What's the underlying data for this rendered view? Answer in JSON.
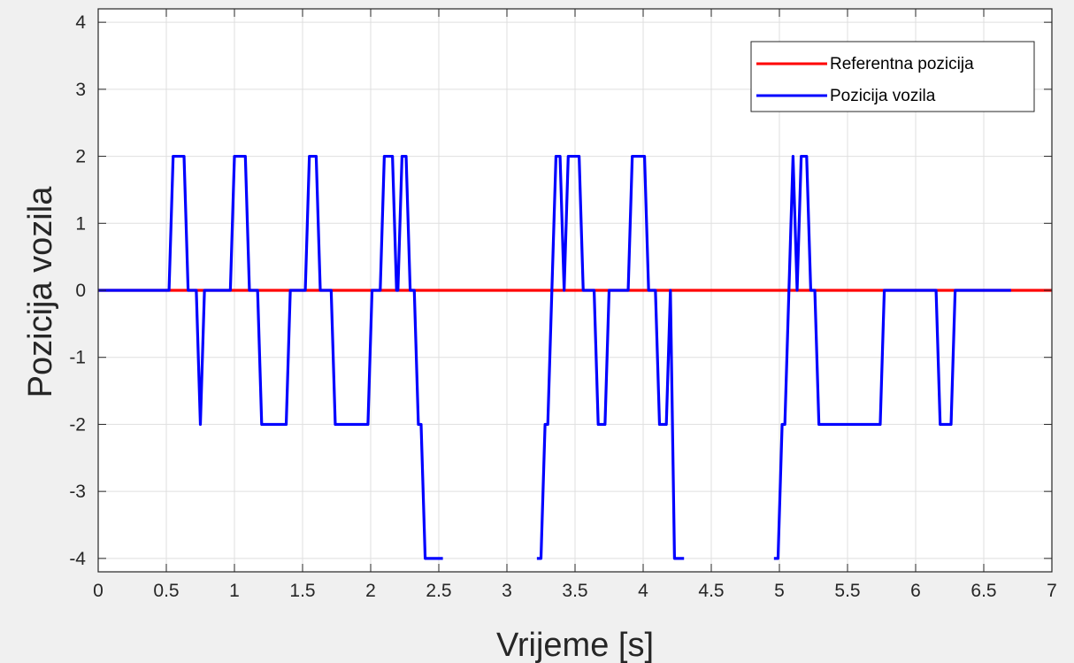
{
  "chart_data": {
    "type": "line",
    "title": "",
    "xlabel": "Vrijeme [s]",
    "ylabel": "Pozicija vozila",
    "xlim": [
      0,
      7
    ],
    "ylim": [
      -4.2,
      4.2
    ],
    "xticks": [
      0,
      0.5,
      1,
      1.5,
      2,
      2.5,
      3,
      3.5,
      4,
      4.5,
      5,
      5.5,
      6,
      6.5,
      7
    ],
    "xtick_labels": [
      "0",
      "0.5",
      "1",
      "1.5",
      "2",
      "2.5",
      "3",
      "3.5",
      "4",
      "4.5",
      "5",
      "5.5",
      "6",
      "6.5",
      "7"
    ],
    "yticks": [
      -4,
      -3,
      -2,
      -1,
      0,
      1,
      2,
      3,
      4
    ],
    "ytick_labels": [
      "-4",
      "-3",
      "-2",
      "-1",
      "0",
      "1",
      "2",
      "3",
      "4"
    ],
    "grid": true,
    "legend": "top-right",
    "series": [
      {
        "name": "Referentna pozicija",
        "color": "#ff0000",
        "segments": [
          [
            [
              0,
              0
            ],
            [
              7,
              0
            ]
          ]
        ]
      },
      {
        "name": "Pozicija vozila",
        "color": "#0000ff",
        "segments": [
          [
            [
              0,
              0
            ],
            [
              0.52,
              0
            ],
            [
              0.55,
              2
            ],
            [
              0.63,
              2
            ],
            [
              0.66,
              0
            ],
            [
              0.72,
              0
            ],
            [
              0.75,
              -2
            ],
            [
              0.78,
              0
            ],
            [
              0.97,
              0
            ],
            [
              1.0,
              2
            ],
            [
              1.08,
              2
            ],
            [
              1.11,
              0
            ],
            [
              1.17,
              0
            ],
            [
              1.2,
              -2
            ],
            [
              1.38,
              -2
            ],
            [
              1.41,
              0
            ],
            [
              1.52,
              0
            ],
            [
              1.55,
              2
            ],
            [
              1.6,
              2
            ],
            [
              1.63,
              0
            ],
            [
              1.71,
              0
            ],
            [
              1.74,
              -2
            ],
            [
              1.98,
              -2
            ],
            [
              2.01,
              0
            ],
            [
              2.07,
              0
            ],
            [
              2.1,
              2
            ],
            [
              2.16,
              2
            ],
            [
              2.19,
              0
            ],
            [
              2.2,
              0
            ],
            [
              2.23,
              2
            ],
            [
              2.26,
              2
            ],
            [
              2.29,
              0
            ],
            [
              2.32,
              0
            ],
            [
              2.35,
              -2
            ],
            [
              2.37,
              -2
            ],
            [
              2.4,
              -4
            ],
            [
              2.53,
              -4
            ]
          ],
          [
            [
              3.22,
              -4
            ],
            [
              3.25,
              -4
            ],
            [
              3.28,
              -2
            ],
            [
              3.3,
              -2
            ],
            [
              3.33,
              0
            ],
            [
              3.36,
              2
            ],
            [
              3.39,
              2
            ],
            [
              3.42,
              0
            ],
            [
              3.45,
              2
            ],
            [
              3.53,
              2
            ],
            [
              3.56,
              0
            ],
            [
              3.64,
              0
            ],
            [
              3.67,
              -2
            ],
            [
              3.72,
              -2
            ],
            [
              3.75,
              0
            ],
            [
              3.89,
              0
            ],
            [
              3.92,
              2
            ],
            [
              4.01,
              2
            ],
            [
              4.04,
              0
            ],
            [
              4.09,
              0
            ],
            [
              4.12,
              -2
            ],
            [
              4.17,
              -2
            ],
            [
              4.2,
              0
            ],
            [
              4.23,
              -4
            ],
            [
              4.3,
              -4
            ]
          ],
          [
            [
              4.96,
              -4
            ],
            [
              4.99,
              -4
            ],
            [
              5.02,
              -2
            ],
            [
              5.04,
              -2
            ],
            [
              5.07,
              0
            ],
            [
              5.1,
              2
            ],
            [
              5.13,
              0
            ],
            [
              5.16,
              2
            ],
            [
              5.2,
              2
            ],
            [
              5.23,
              0
            ],
            [
              5.26,
              0
            ],
            [
              5.29,
              -2
            ],
            [
              5.74,
              -2
            ],
            [
              5.77,
              0
            ],
            [
              6.15,
              0
            ],
            [
              6.18,
              -2
            ],
            [
              6.26,
              -2
            ],
            [
              6.29,
              0
            ],
            [
              6.7,
              0
            ]
          ]
        ]
      }
    ]
  }
}
